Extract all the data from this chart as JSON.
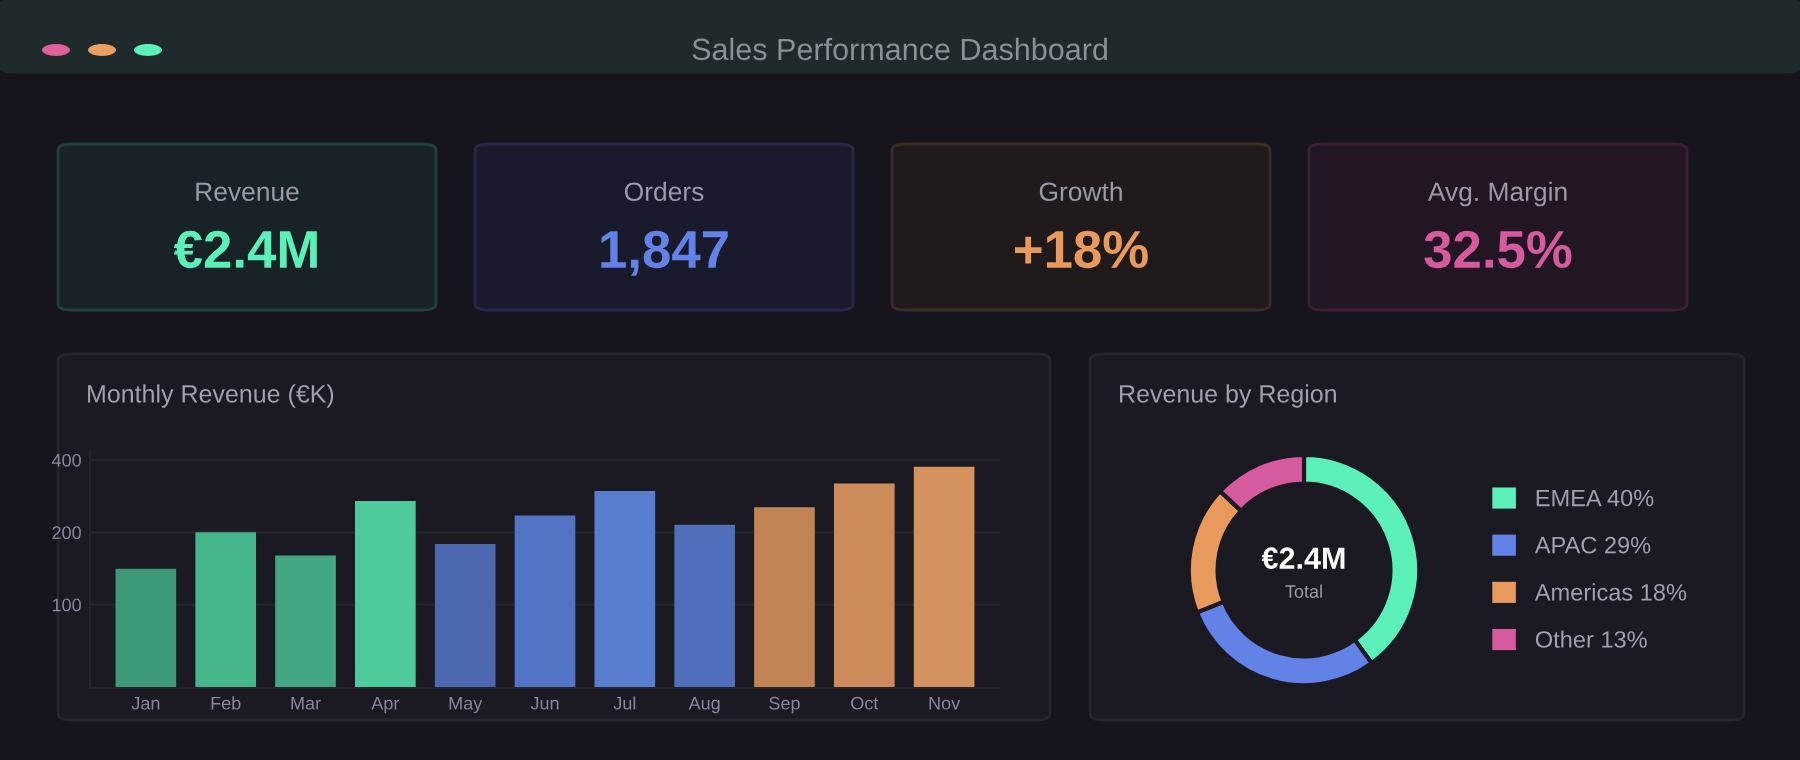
{
  "chart_data": [
    {
      "type": "other",
      "title": "Sales Performance Dashboard",
      "annotations": [
        "Revenue",
        "€2.4M",
        "Orders",
        "1,847",
        "Growth",
        "+18%",
        "Avg. Margin",
        "32.5%"
      ]
    },
    {
      "type": "bar",
      "title": "Monthly Revenue (€K)",
      "categories": [
        "Jan",
        "Feb",
        "Mar",
        "Apr",
        "May",
        "Jun",
        "Jul",
        "Aug",
        "Sep",
        "Oct",
        "Nov"
      ],
      "values": [
        141,
        200,
        160,
        270,
        179,
        235,
        297,
        215,
        254,
        319,
        375
      ],
      "colors": [
        "#3d9a78",
        "#45b58a",
        "#42a683",
        "#4ecb9b",
        "#4b68b0",
        "#5274c4",
        "#587ed0",
        "#506fbb",
        "#c08455",
        "#cc8b58",
        "#d4925f"
      ],
      "log": true,
      "ylim": [
        45,
        440
      ],
      "yticks": [
        100,
        200,
        400
      ],
      "grid": "y"
    },
    {
      "type": "donut",
      "title": "Revenue by Region",
      "categories": [
        "EMEA",
        "APAC",
        "Americas",
        "Other"
      ],
      "values": [
        40,
        29,
        18,
        13
      ],
      "value_labels": [
        "40%",
        "29%",
        "18%",
        "13%"
      ],
      "colors": [
        "#5af0b8",
        "#6382e8",
        "#e89a5c",
        "#d55a9e"
      ],
      "annotations": [
        "€2.4M",
        "Total"
      ],
      "legend": "right"
    }
  ]
}
